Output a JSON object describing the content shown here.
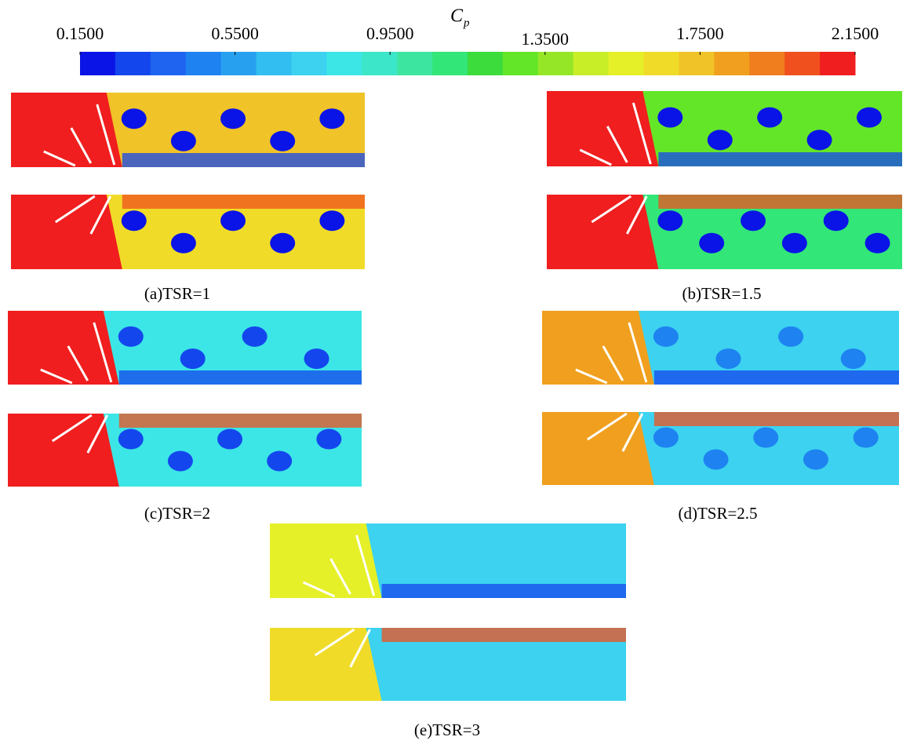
{
  "colorbar": {
    "title": "C",
    "title_subscript": "p",
    "lim": [
      0.15,
      2.15
    ],
    "ticks": [
      {
        "value": 0.15,
        "label": "0.1500"
      },
      {
        "value": 0.55,
        "label": "0.5500"
      },
      {
        "value": 0.95,
        "label": "0.9500"
      },
      {
        "value": 1.35,
        "label": "1.3500"
      },
      {
        "value": 1.75,
        "label": "1.7500"
      },
      {
        "value": 2.15,
        "label": "2.1500"
      }
    ],
    "colors": [
      "#0a14e6",
      "#1446ee",
      "#1e64f0",
      "#1e82f0",
      "#28a0f0",
      "#32bef0",
      "#3cd2f0",
      "#3ce6e6",
      "#3ce6c8",
      "#3ce6a0",
      "#32e678",
      "#3cdc3c",
      "#64e628",
      "#96e628",
      "#c8ee28",
      "#e6f028",
      "#f0dc28",
      "#f0c328",
      "#f0a01e",
      "#f07d1e",
      "#f0501e",
      "#f01e1e"
    ]
  },
  "panels": [
    {
      "caption": "(a)TSR=1"
    },
    {
      "caption": "(b)TSR=1.5"
    },
    {
      "caption": "(c)TSR=2"
    },
    {
      "caption": "(d)TSR=2.5"
    },
    {
      "caption": "(e)TSR=3"
    }
  ]
}
